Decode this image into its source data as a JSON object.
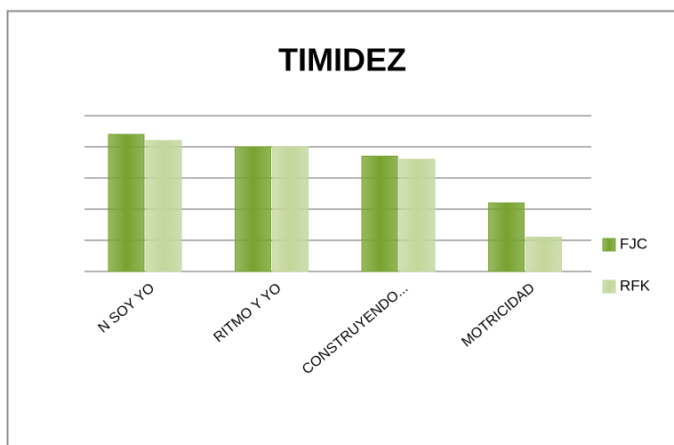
{
  "chart_data": {
    "type": "bar",
    "title": "TIMIDEZ",
    "categories": [
      "N SOY YO",
      "RITMO Y YO",
      "CONSTRUYENDO...",
      "MOTRICIDAD"
    ],
    "series": [
      {
        "name": "FJC",
        "color": "#77a22f",
        "values": [
          4.4,
          4.0,
          3.7,
          2.2
        ]
      },
      {
        "name": "RFK",
        "color": "#c3d69b",
        "values": [
          4.2,
          4.0,
          3.6,
          1.1
        ]
      }
    ],
    "ylim": [
      0,
      5
    ],
    "yticks": [
      0,
      1,
      2,
      3,
      4,
      5
    ],
    "grid": true,
    "legend": "right"
  }
}
